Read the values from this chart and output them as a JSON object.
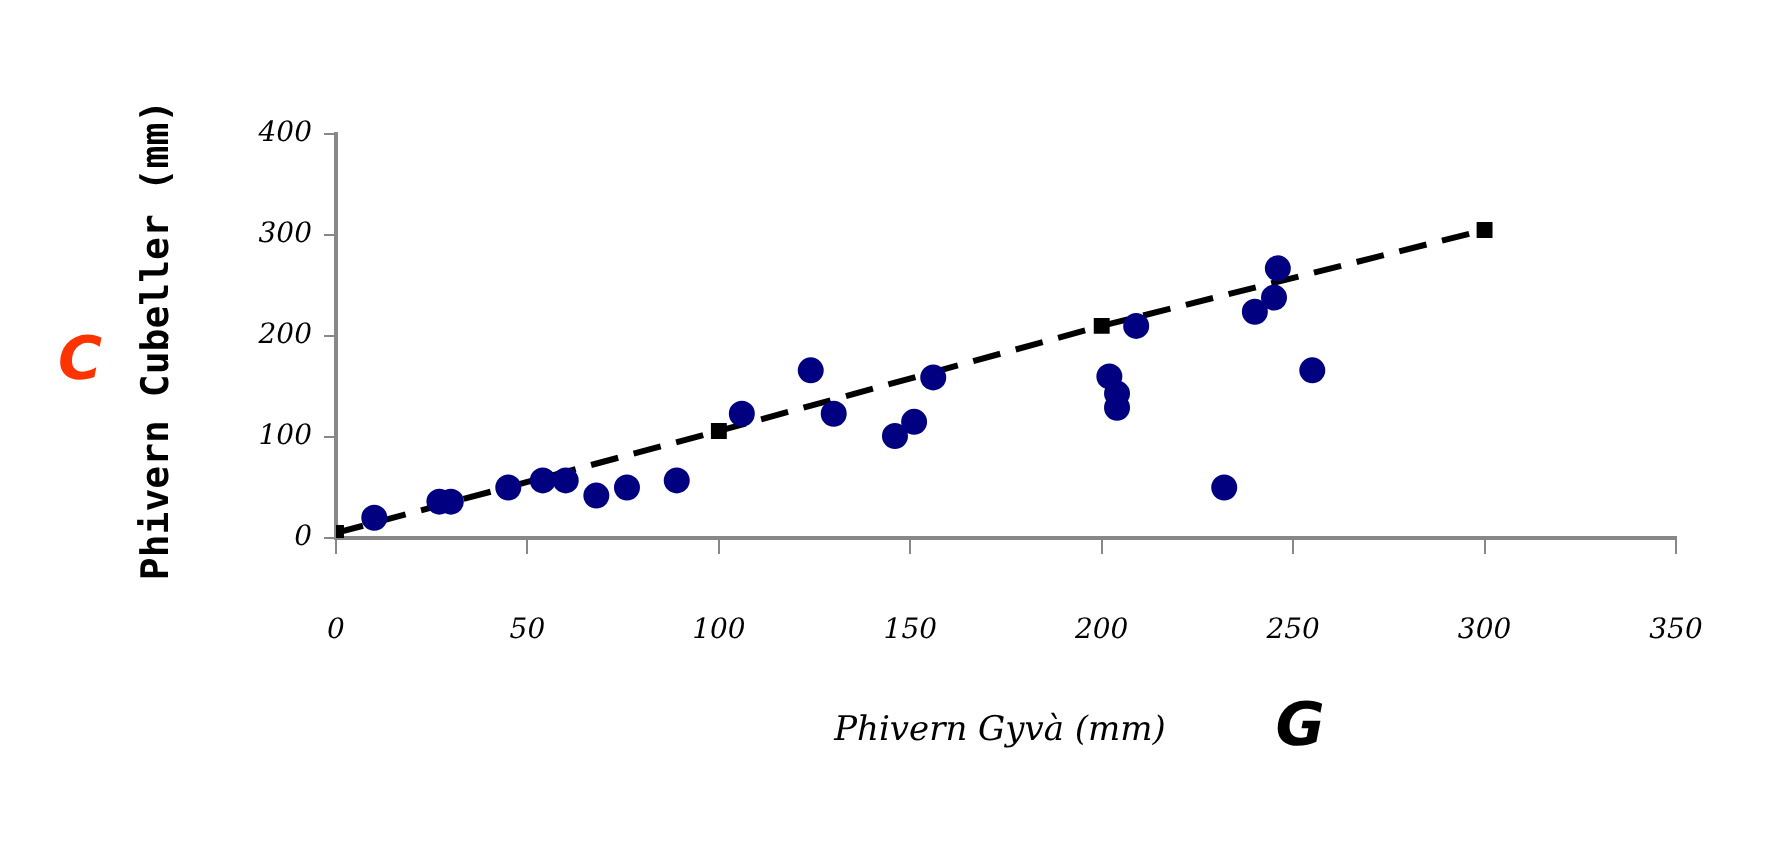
{
  "chart_data": {
    "type": "scatter",
    "xlabel": "Phivern Gyvà (mm)",
    "ylabel": "Phivern Cubeller (mm)",
    "annotations": [
      "C",
      "G"
    ],
    "xlim": [
      0,
      350
    ],
    "xticks": [
      0,
      50,
      100,
      150,
      200,
      250,
      300,
      350
    ],
    "ylim": [
      0,
      400
    ],
    "yticks": [
      0,
      100,
      200,
      300,
      400
    ],
    "grid": false,
    "legend": false,
    "series": [
      {
        "type": "scatter",
        "color": "#000080",
        "marker": "circle",
        "x": [
          10,
          27,
          30,
          45,
          54,
          60,
          68,
          76,
          89,
          106,
          124,
          130,
          146,
          151,
          156,
          202,
          204,
          204,
          209,
          232,
          240,
          245,
          246,
          255
        ],
        "values": [
          20,
          36,
          36,
          50,
          57,
          57,
          42,
          50,
          57,
          123,
          166,
          123,
          101,
          115,
          159,
          160,
          143,
          129,
          210,
          50,
          224,
          238,
          267,
          166
        ]
      },
      {
        "type": "line",
        "color": "#000000",
        "marker": "square",
        "line_style": "dashed",
        "x": [
          0,
          100,
          200,
          300
        ],
        "values": [
          5,
          106,
          210,
          305
        ]
      }
    ]
  }
}
